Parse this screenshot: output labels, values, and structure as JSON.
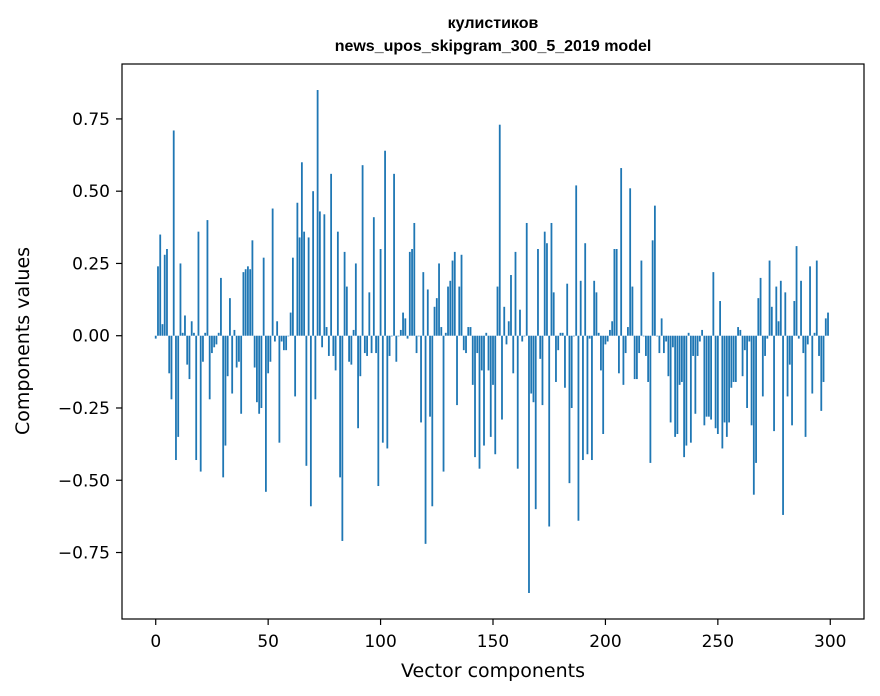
{
  "chart_data": {
    "type": "bar",
    "title": "кулистиков",
    "subtitle": "news_upos_skipgram_300_5_2019 model",
    "xlabel": "Vector components",
    "ylabel": "Components values",
    "xlim": [
      -15,
      315
    ],
    "ylim": [
      -0.98,
      0.94
    ],
    "xticks": [
      0,
      50,
      100,
      150,
      200,
      250,
      300
    ],
    "yticks": [
      -0.75,
      -0.5,
      -0.25,
      0.0,
      0.25,
      0.5,
      0.75
    ],
    "xtick_labels": [
      "0",
      "50",
      "100",
      "150",
      "200",
      "250",
      "300"
    ],
    "ytick_labels": [
      "−0.75",
      "−0.50",
      "−0.25",
      "0.00",
      "0.25",
      "0.50",
      "0.75"
    ],
    "bar_color": "#1f77b4",
    "grid": false,
    "values": [
      -0.01,
      0.24,
      0.35,
      0.04,
      0.28,
      0.3,
      -0.13,
      -0.22,
      0.71,
      -0.43,
      -0.35,
      0.25,
      0.01,
      0.07,
      -0.1,
      -0.15,
      0.05,
      0.01,
      -0.43,
      0.36,
      -0.47,
      -0.09,
      0.01,
      0.4,
      -0.22,
      -0.06,
      -0.04,
      -0.03,
      0.01,
      0.2,
      -0.49,
      -0.38,
      -0.14,
      0.13,
      -0.2,
      0.02,
      -0.11,
      -0.09,
      -0.27,
      0.22,
      0.23,
      0.24,
      0.23,
      0.33,
      -0.11,
      -0.23,
      -0.27,
      -0.25,
      0.27,
      -0.54,
      -0.13,
      -0.09,
      0.44,
      -0.02,
      0.05,
      -0.37,
      -0.02,
      -0.05,
      -0.05,
      0.0,
      0.08,
      0.27,
      -0.21,
      0.46,
      0.34,
      0.6,
      0.36,
      -0.45,
      0.34,
      -0.59,
      0.5,
      -0.22,
      0.85,
      0.43,
      -0.04,
      0.42,
      0.03,
      -0.07,
      0.56,
      -0.07,
      -0.12,
      0.36,
      -0.49,
      -0.71,
      0.29,
      0.17,
      -0.09,
      -0.1,
      0.02,
      0.25,
      -0.32,
      -0.14,
      0.59,
      -0.06,
      -0.07,
      0.15,
      -0.06,
      0.41,
      -0.06,
      -0.52,
      0.3,
      -0.37,
      0.64,
      -0.39,
      -0.07,
      0.0,
      0.56,
      -0.09,
      0.0,
      0.02,
      0.08,
      0.06,
      -0.01,
      0.29,
      0.3,
      0.39,
      -0.06,
      0.0,
      -0.3,
      0.22,
      -0.72,
      0.16,
      -0.28,
      -0.59,
      0.1,
      0.13,
      0.25,
      0.03,
      -0.47,
      0.01,
      0.17,
      0.19,
      0.26,
      0.29,
      -0.24,
      0.17,
      0.28,
      -0.05,
      -0.06,
      0.03,
      0.03,
      -0.17,
      -0.42,
      -0.06,
      -0.46,
      -0.12,
      -0.38,
      0.01,
      -0.12,
      -0.35,
      -0.17,
      -0.41,
      0.17,
      0.73,
      -0.29,
      0.1,
      -0.03,
      0.05,
      0.21,
      -0.13,
      0.29,
      -0.46,
      0.09,
      -0.02,
      0.0,
      0.39,
      -0.89,
      -0.2,
      -0.23,
      -0.6,
      0.3,
      -0.08,
      -0.24,
      0.36,
      0.32,
      -0.66,
      0.39,
      0.15,
      -0.16,
      -0.05,
      0.01,
      0.01,
      -0.18,
      0.18,
      -0.51,
      -0.25,
      0.0,
      0.52,
      -0.64,
      0.19,
      -0.43,
      0.32,
      -0.41,
      -0.01,
      -0.43,
      0.19,
      0.15,
      0.01,
      -0.12,
      -0.34,
      -0.03,
      -0.02,
      0.02,
      0.05,
      0.3,
      0.3,
      -0.13,
      0.58,
      -0.17,
      -0.06,
      0.03,
      0.51,
      0.17,
      -0.15,
      -0.15,
      -0.06,
      0.26,
      0.0,
      -0.07,
      -0.16,
      -0.44,
      0.33,
      0.45,
      0.0,
      -0.06,
      0.06,
      -0.06,
      -0.02,
      -0.14,
      -0.3,
      -0.04,
      -0.35,
      -0.34,
      -0.17,
      -0.16,
      -0.42,
      -0.38,
      0.01,
      -0.37,
      -0.07,
      -0.27,
      -0.07,
      -0.02,
      0.02,
      -0.31,
      -0.28,
      -0.28,
      -0.29,
      0.22,
      -0.32,
      -0.34,
      0.12,
      -0.39,
      -0.3,
      -0.35,
      -0.3,
      -0.18,
      -0.16,
      -0.16,
      0.03,
      0.02,
      -0.14,
      -0.05,
      -0.25,
      -0.02,
      -0.31,
      -0.55,
      -0.44,
      0.13,
      0.2,
      -0.21,
      -0.07,
      -0.01,
      0.26,
      0.1,
      -0.33,
      0.17,
      0.05,
      0.19,
      -0.62,
      0.15,
      -0.21,
      -0.1,
      -0.31,
      0.12,
      0.31,
      -0.01,
      0.19,
      -0.06,
      -0.35,
      -0.03,
      0.24,
      -0.2,
      0.01,
      0.26,
      -0.07,
      -0.26,
      -0.16,
      0.06,
      0.08
    ]
  }
}
